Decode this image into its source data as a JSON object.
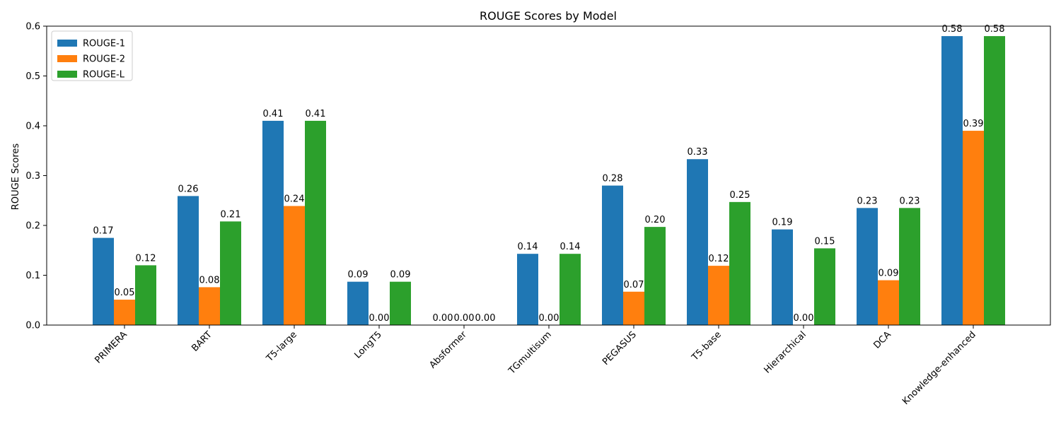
{
  "chart_data": {
    "type": "bar",
    "title": "ROUGE Scores by Model",
    "xlabel": "",
    "ylabel": "ROUGE Scores",
    "categories": [
      "PRIMERA",
      "BART",
      "T5-large",
      "LongT5",
      "Absformer",
      "TGmultisum",
      "PEGASUS",
      "T5-base",
      "Hierarchical",
      "DCA",
      "Knowledge-enhanced"
    ],
    "series": [
      {
        "name": "ROUGE-1",
        "color": "#1f77b4",
        "values": [
          0.175,
          0.259,
          0.41,
          0.087,
          0.0,
          0.143,
          0.28,
          0.333,
          0.192,
          0.235,
          0.58
        ]
      },
      {
        "name": "ROUGE-2",
        "color": "#ff7f0e",
        "values": [
          0.051,
          0.076,
          0.239,
          0.0,
          0.0,
          0.0,
          0.067,
          0.119,
          0.0,
          0.09,
          0.39
        ]
      },
      {
        "name": "ROUGE-L",
        "color": "#2ca02c",
        "values": [
          0.12,
          0.208,
          0.41,
          0.087,
          0.0,
          0.143,
          0.197,
          0.247,
          0.154,
          0.235,
          0.58
        ]
      }
    ],
    "ylim": [
      0,
      0.6
    ],
    "yticks": [
      "0.0",
      "0.1",
      "0.2",
      "0.3",
      "0.4",
      "0.5",
      "0.6"
    ],
    "value_label_decimals": 2,
    "grid": false,
    "legend_position": "upper-left"
  }
}
